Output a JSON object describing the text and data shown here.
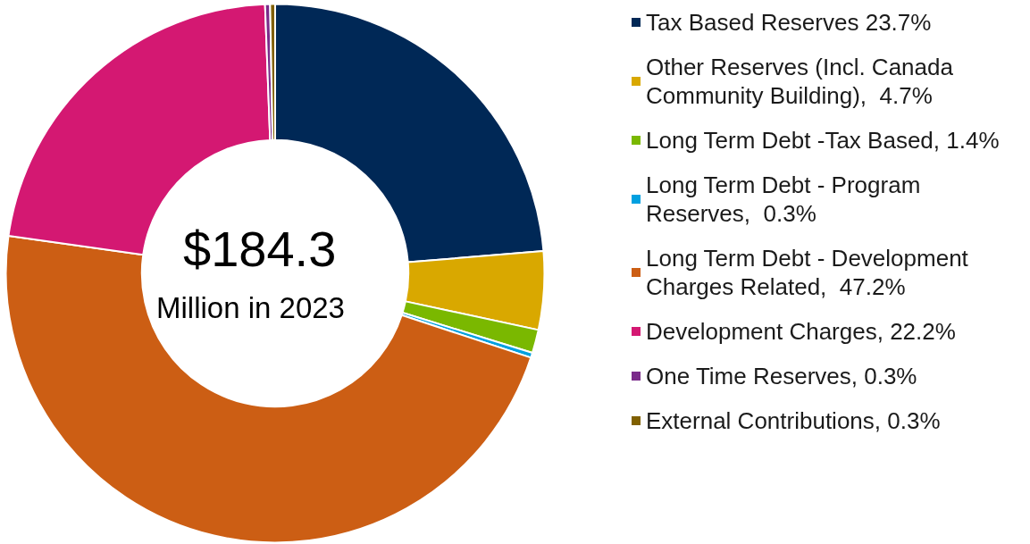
{
  "chart_data": {
    "type": "donut",
    "categories": [
      "Tax Based Reserves 23.7%",
      "Other Reserves (Incl. Canada Community Building),  4.7%",
      "Long Term Debt -Tax Based, 1.4%",
      "Long Term Debt - Program Reserves,  0.3%",
      "Long Term Debt - Development Charges Related,  47.2%",
      "Development Charges, 22.2%",
      "One Time Reserves, 0.3%",
      "External Contributions, 0.3%"
    ],
    "values": [
      23.7,
      4.7,
      1.4,
      0.3,
      47.2,
      22.2,
      0.3,
      0.3
    ],
    "colors": [
      "#002856",
      "#d9a800",
      "#7ab800",
      "#00a0e0",
      "#cc5e14",
      "#d41872",
      "#7a2a8a",
      "#806000"
    ],
    "annotations": [
      "$184.3",
      "Million in 2023"
    ],
    "legend": "right"
  }
}
